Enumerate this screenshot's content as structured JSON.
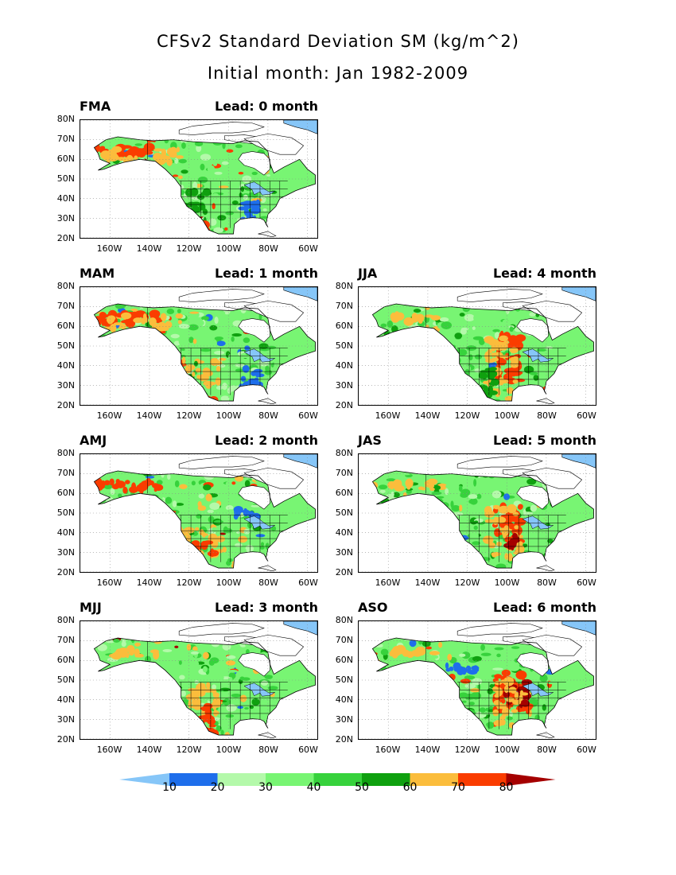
{
  "title_line1": "CFSv2 Standard Deviation SM (kg/m^2)",
  "title_line2": "Initial month: Jan 1982-2009",
  "lat_labels": [
    "80N",
    "70N",
    "60N",
    "50N",
    "40N",
    "30N",
    "20N"
  ],
  "lon_labels": [
    "160W",
    "140W",
    "120W",
    "100W",
    "80W",
    "60W"
  ],
  "panels": [
    {
      "season": "FMA",
      "lead": "Lead: 0 month"
    },
    {
      "season": "MAM",
      "lead": "Lead: 1 month"
    },
    {
      "season": "JJA",
      "lead": "Lead: 4 month"
    },
    {
      "season": "AMJ",
      "lead": "Lead: 2 month"
    },
    {
      "season": "JAS",
      "lead": "Lead: 5 month"
    },
    {
      "season": "MJJ",
      "lead": "Lead: 3 month"
    },
    {
      "season": "ASO",
      "lead": "Lead: 6 month"
    }
  ],
  "colorbar": {
    "labels": [
      "10",
      "20",
      "30",
      "40",
      "50",
      "60",
      "70",
      "80"
    ],
    "colors": [
      "#86c6f8",
      "#1e6eeb",
      "#b4f9aa",
      "#78f573",
      "#37d23c",
      "#0fa00f",
      "#fbbd3c",
      "#fa3c00",
      "#a50000"
    ]
  }
}
